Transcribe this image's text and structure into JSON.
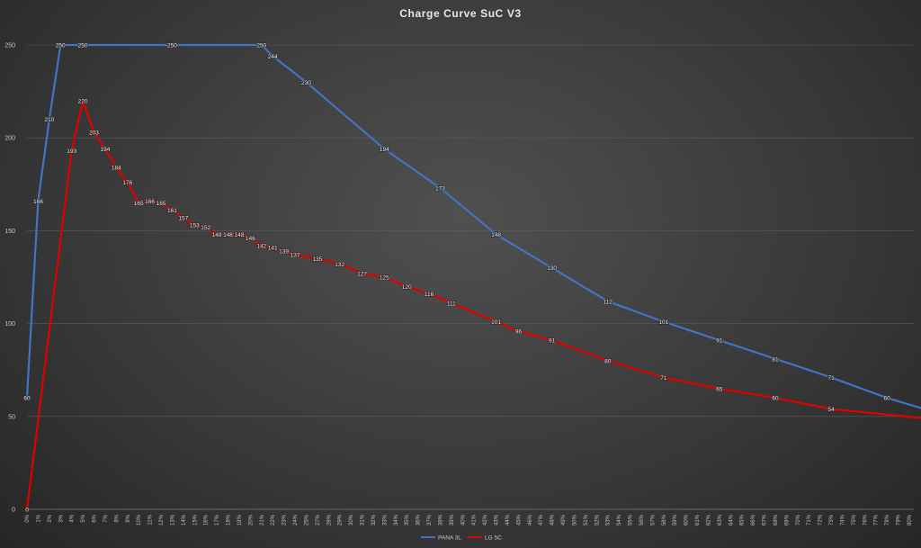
{
  "chart_data": {
    "type": "line",
    "title": "Charge  Curve  SuC  V3",
    "xlabel": "",
    "ylabel": "",
    "ylim": [
      0,
      250
    ],
    "yticks": [
      0,
      50,
      100,
      150,
      200,
      250
    ],
    "grid": true,
    "legend_position": "bottom",
    "x": [
      "0%",
      "1%",
      "2%",
      "3%",
      "4%",
      "5%",
      "6%",
      "7%",
      "8%",
      "9%",
      "10%",
      "11%",
      "12%",
      "13%",
      "14%",
      "15%",
      "16%",
      "17%",
      "18%",
      "19%",
      "20%",
      "21%",
      "22%",
      "23%",
      "24%",
      "25%",
      "27%",
      "28%",
      "29%",
      "30%",
      "31%",
      "32%",
      "33%",
      "34%",
      "35%",
      "36%",
      "37%",
      "38%",
      "39%",
      "40%",
      "41%",
      "42%",
      "43%",
      "44%",
      "45%",
      "46%",
      "47%",
      "48%",
      "49%",
      "50%",
      "51%",
      "52%",
      "53%",
      "54%",
      "55%",
      "56%",
      "57%",
      "58%",
      "59%",
      "60%",
      "61%",
      "62%",
      "63%",
      "64%",
      "65%",
      "66%",
      "67%",
      "68%",
      "69%",
      "70%",
      "71%",
      "72%",
      "73%",
      "74%",
      "75%",
      "76%",
      "77%",
      "78%",
      "79%",
      "80%"
    ],
    "series": [
      {
        "name": "PANA 3L",
        "color": "#4472c4",
        "points": [
          [
            0,
            60
          ],
          [
            1,
            166
          ],
          [
            2,
            210
          ],
          [
            3,
            250
          ],
          [
            5,
            250
          ],
          [
            13,
            250
          ],
          [
            21,
            250
          ],
          [
            22,
            244
          ],
          [
            25,
            230
          ],
          [
            32,
            194
          ],
          [
            37,
            173
          ],
          [
            42,
            148
          ],
          [
            47,
            130
          ],
          [
            52,
            112
          ],
          [
            57,
            101
          ],
          [
            62,
            91
          ],
          [
            67,
            81
          ],
          [
            72,
            71
          ],
          [
            77,
            60
          ],
          [
            82,
            51
          ]
        ]
      },
      {
        "name": "LG 5C",
        "color": "#e00000",
        "points": [
          [
            0,
            0
          ],
          [
            4,
            193
          ],
          [
            5,
            220
          ],
          [
            6,
            203
          ],
          [
            7,
            194
          ],
          [
            8,
            184
          ],
          [
            9,
            176
          ],
          [
            10,
            165
          ],
          [
            11,
            166
          ],
          [
            12,
            165
          ],
          [
            13,
            161
          ],
          [
            14,
            157
          ],
          [
            15,
            153
          ],
          [
            16,
            152
          ],
          [
            17,
            148
          ],
          [
            18,
            148
          ],
          [
            19,
            148
          ],
          [
            20,
            146
          ],
          [
            21,
            142
          ],
          [
            22,
            141
          ],
          [
            23,
            139
          ],
          [
            24,
            137
          ],
          [
            26,
            135
          ],
          [
            28,
            132
          ],
          [
            30,
            127
          ],
          [
            32,
            125
          ],
          [
            34,
            120
          ],
          [
            36,
            116
          ],
          [
            38,
            111
          ],
          [
            42,
            101
          ],
          [
            44,
            96
          ],
          [
            47,
            91
          ],
          [
            52,
            80
          ],
          [
            57,
            71
          ],
          [
            62,
            65
          ],
          [
            67,
            60
          ],
          [
            72,
            54
          ],
          [
            82,
            48
          ]
        ]
      }
    ]
  }
}
